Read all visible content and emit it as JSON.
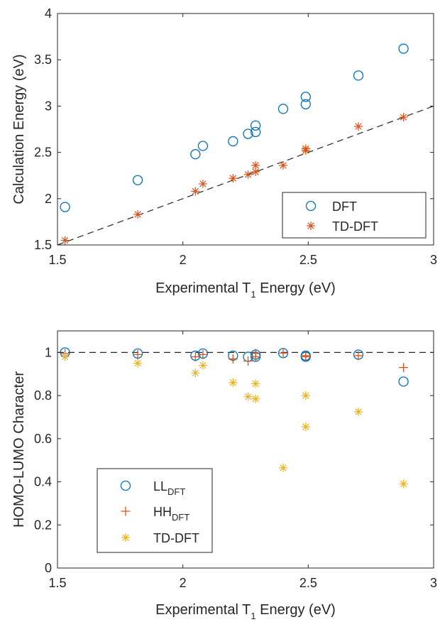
{
  "chart_data": [
    {
      "type": "scatter",
      "xlabel": {
        "main": "Experimental T",
        "sub": "1",
        "tail": " Energy (eV)"
      },
      "ylabel": "Calculation Energy (eV)",
      "xlim": [
        1.5,
        3
      ],
      "ylim": [
        1.5,
        4
      ],
      "xticks": [
        "1.5",
        "2",
        "2.5",
        "3"
      ],
      "yticks": [
        "1.5",
        "2",
        "2.5",
        "3",
        "3.5",
        "4"
      ],
      "reference_line": {
        "style": "dashed",
        "from": [
          1.5,
          1.5
        ],
        "to": [
          3,
          3
        ]
      },
      "legend_position": "bottom-right",
      "colors": {
        "DFT": "#0072bd",
        "TD-DFT": "#d95319"
      },
      "series": [
        {
          "name": "DFT",
          "marker": "circle",
          "x": [
            1.53,
            1.82,
            2.05,
            2.08,
            2.2,
            2.26,
            2.29,
            2.29,
            2.4,
            2.49,
            2.49,
            2.7,
            2.88
          ],
          "y": [
            1.91,
            2.2,
            2.48,
            2.57,
            2.62,
            2.7,
            2.72,
            2.79,
            2.97,
            3.02,
            3.1,
            3.33,
            3.62
          ]
        },
        {
          "name": "TD-DFT",
          "marker": "asterisk",
          "x": [
            1.53,
            1.82,
            2.05,
            2.08,
            2.2,
            2.26,
            2.29,
            2.29,
            2.4,
            2.49,
            2.49,
            2.7,
            2.88
          ],
          "y": [
            1.55,
            1.83,
            2.08,
            2.16,
            2.22,
            2.26,
            2.29,
            2.36,
            2.36,
            2.52,
            2.54,
            2.78,
            2.88
          ]
        }
      ]
    },
    {
      "type": "scatter",
      "xlabel": {
        "main": "Experimental T",
        "sub": "1",
        "tail": " Energy (eV)"
      },
      "ylabel": "HOMO-LUMO Character",
      "xlim": [
        1.5,
        3
      ],
      "ylim": [
        0,
        1.1
      ],
      "xticks": [
        "1.5",
        "2",
        "2.5",
        "3"
      ],
      "yticks": [
        "0",
        "0.2",
        "0.4",
        "0.6",
        "0.8",
        "1"
      ],
      "reference_line": {
        "style": "dashed",
        "from": [
          1.5,
          1
        ],
        "to": [
          3,
          1
        ]
      },
      "legend_position": "bottom-left",
      "colors": {
        "LL": "#0072bd",
        "HH": "#d95319",
        "TD-DFT": "#edb120"
      },
      "series": [
        {
          "name": "LL",
          "name_sub": "DFT",
          "marker": "circle",
          "x": [
            1.53,
            1.82,
            2.05,
            2.08,
            2.2,
            2.26,
            2.29,
            2.29,
            2.4,
            2.49,
            2.49,
            2.7,
            2.88
          ],
          "y": [
            1.0,
            0.995,
            0.985,
            0.995,
            0.985,
            0.98,
            0.98,
            0.99,
            0.997,
            0.985,
            0.98,
            0.99,
            0.865
          ]
        },
        {
          "name": "HH",
          "name_sub": "DFT",
          "marker": "plus",
          "x": [
            1.53,
            1.82,
            2.05,
            2.08,
            2.2,
            2.26,
            2.29,
            2.29,
            2.4,
            2.49,
            2.49,
            2.7,
            2.88
          ],
          "y": [
            0.995,
            0.99,
            0.98,
            0.99,
            0.97,
            0.96,
            0.98,
            0.995,
            0.997,
            0.985,
            0.98,
            0.985,
            0.93
          ]
        },
        {
          "name": "TD-DFT",
          "marker": "asterisk",
          "x": [
            1.53,
            1.82,
            2.05,
            2.08,
            2.2,
            2.26,
            2.29,
            2.29,
            2.4,
            2.49,
            2.49,
            2.7,
            2.88
          ],
          "y": [
            0.98,
            0.95,
            0.905,
            0.94,
            0.86,
            0.795,
            0.785,
            0.855,
            0.465,
            0.8,
            0.655,
            0.725,
            0.39
          ]
        }
      ]
    }
  ]
}
